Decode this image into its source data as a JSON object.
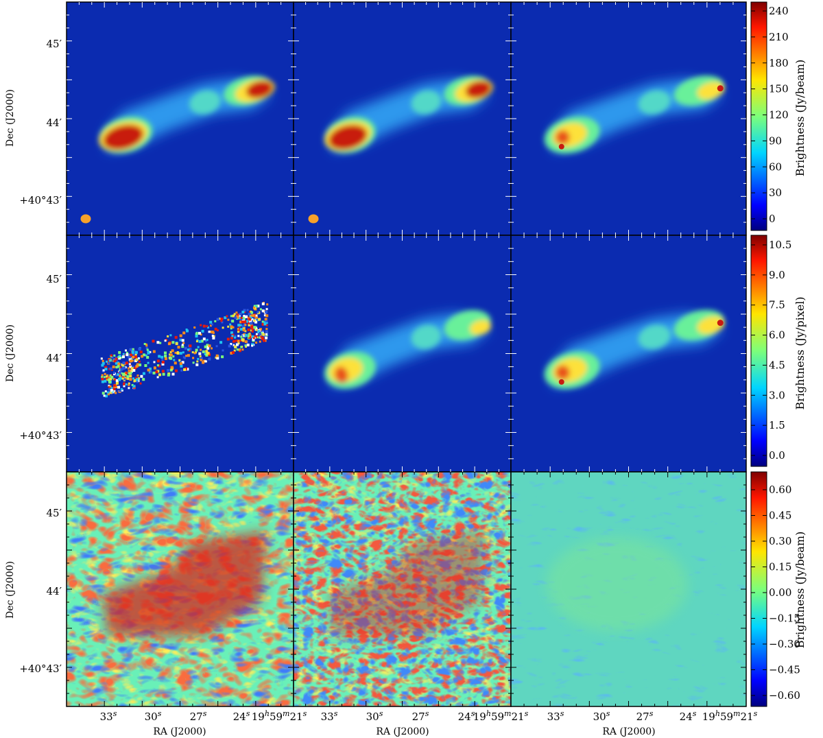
{
  "figure": {
    "row_titles": [],
    "axis_labels": {
      "ylabel": "Dec (J2000)",
      "xlabel": "RA (J2000)"
    },
    "dec_ticks": [
      "45′",
      "44′",
      "+40°43′"
    ],
    "ra_ticks": [
      "33",
      "30",
      "27",
      "24",
      "19",
      "59",
      "21"
    ],
    "colorbars": [
      {
        "label": "Brightness (Jy/beam)",
        "ticks": [
          "240",
          "210",
          "180",
          "150",
          "120",
          "90",
          "60",
          "30",
          "0"
        ]
      },
      {
        "label": "Brightness (Jy/pixel)",
        "ticks": [
          "10.5",
          "9.0",
          "7.5",
          "6.0",
          "4.5",
          "3.0",
          "1.5",
          "0.0"
        ]
      },
      {
        "label": "Brightness (Jy/beam)",
        "ticks": [
          "0.60",
          "0.45",
          "0.30",
          "0.15",
          "0.00",
          "−0.15",
          "−0.30",
          "−0.45",
          "−0.60"
        ]
      }
    ],
    "colors": {
      "background_blue": "#0b2bb0",
      "beam": "#f7a12a",
      "jet_low": "#2f9ef0",
      "jet_mid": "#69f09a",
      "jet_high": "#fde13a",
      "jet_peak": "#c81a10"
    }
  }
}
